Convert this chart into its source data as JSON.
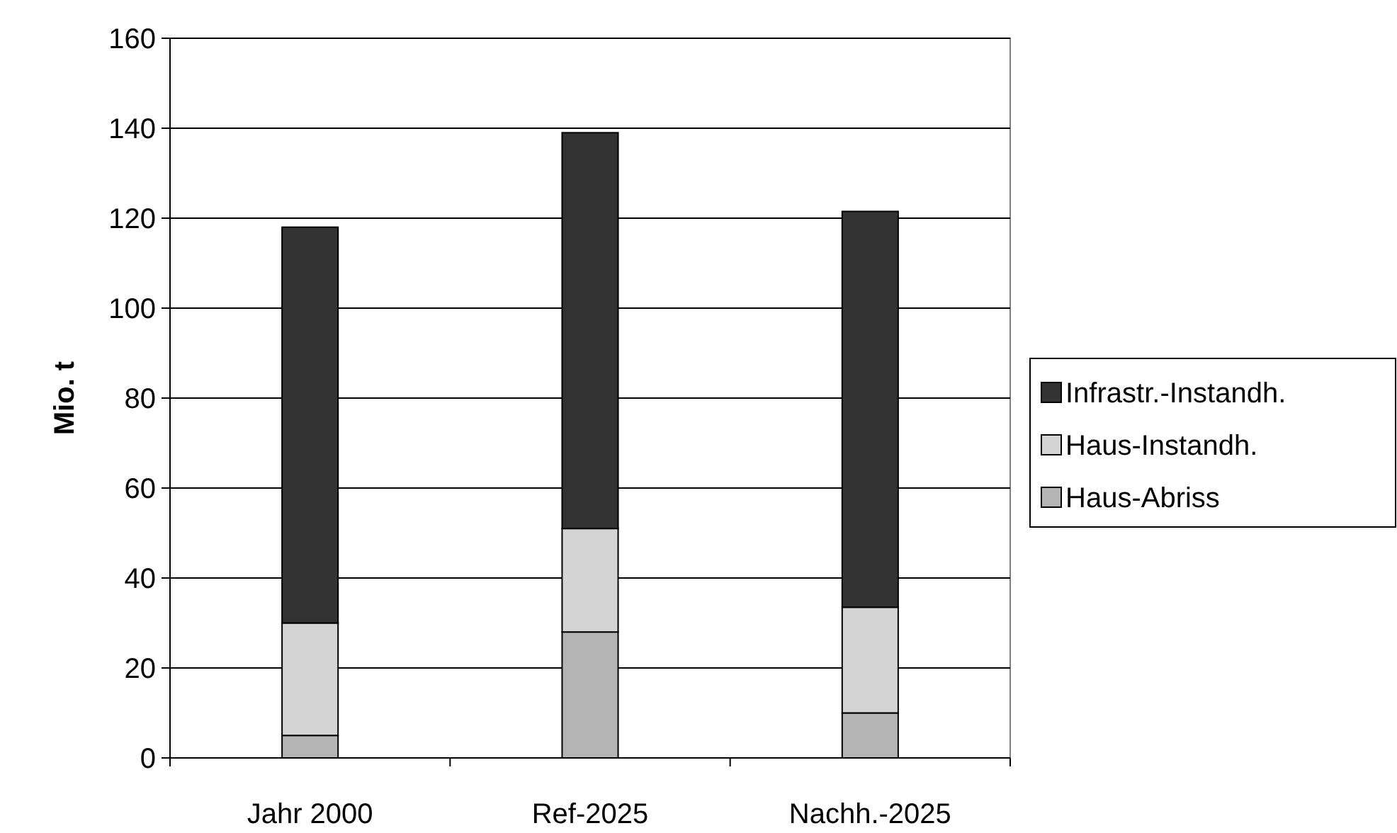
{
  "chart_data": {
    "type": "bar",
    "ylabel": "Mio. t",
    "categories": [
      "Jahr 2000",
      "Ref-2025",
      "Nachh.-2025"
    ],
    "stacked": true,
    "series": [
      {
        "name": "Haus-Abriss",
        "color": "#b4b4b4",
        "values": [
          5,
          28,
          10
        ]
      },
      {
        "name": "Haus-Instandh.",
        "color": "#d4d4d4",
        "values": [
          25,
          23,
          23.5
        ]
      },
      {
        "name": "Infrastr.-Instandh.",
        "color": "#333333",
        "values": [
          88,
          88,
          88
        ]
      }
    ],
    "ylim": [
      0,
      160
    ],
    "yticks": [
      0,
      20,
      40,
      60,
      80,
      100,
      120,
      140,
      160
    ],
    "grid": "y",
    "legend": "right"
  }
}
